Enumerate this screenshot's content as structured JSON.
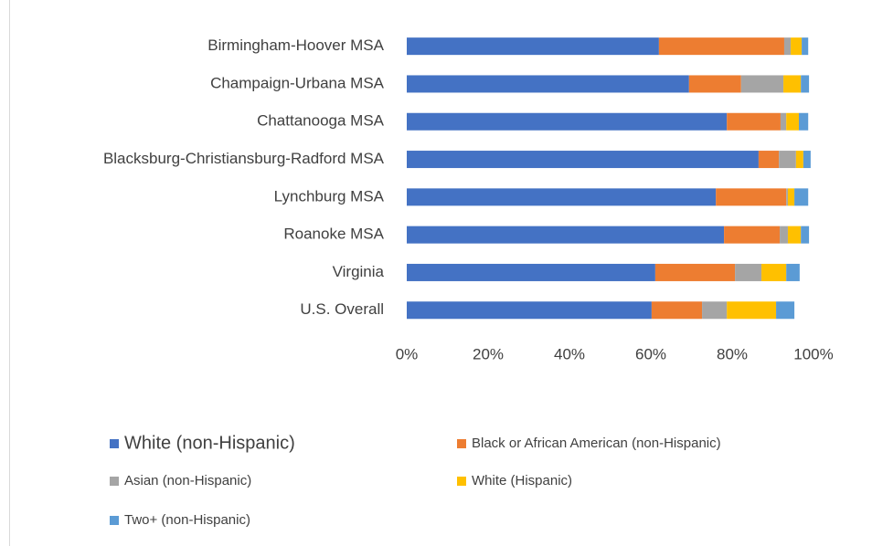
{
  "chart_data": {
    "type": "stacked_bar_horizontal",
    "categories": [
      "Birmingham-Hoover MSA",
      "Champaign-Urbana MSA",
      "Chattanooga MSA",
      "Blacksburg-Christiansburg-Radford MSA",
      "Lynchburg MSA",
      "Roanoke MSA",
      "Virginia",
      "U.S. Overall"
    ],
    "series": [
      {
        "name": "White (non-Hispanic)",
        "color": "#4472c4",
        "values": [
          62.0,
          69.4,
          78.7,
          86.5,
          76.0,
          78.0,
          61.1,
          60.2
        ]
      },
      {
        "name": "Black or African American (non-Hispanic)",
        "color": "#ed7d31",
        "values": [
          30.8,
          12.8,
          13.2,
          5.0,
          17.3,
          13.7,
          19.6,
          12.4
        ]
      },
      {
        "name": "Asian (non-Hispanic)",
        "color": "#a5a5a5",
        "values": [
          1.6,
          10.4,
          1.4,
          4.2,
          0.4,
          2.0,
          6.5,
          6.1
        ]
      },
      {
        "name": "White (Hispanic)",
        "color": "#ffc000",
        "values": [
          2.7,
          4.3,
          3.1,
          1.8,
          1.6,
          3.2,
          6.1,
          12.1
        ]
      },
      {
        "name": "Two+ (non-Hispanic)",
        "color": "#5b9bd5",
        "values": [
          1.6,
          2.0,
          2.3,
          1.8,
          3.4,
          2.0,
          3.3,
          4.5
        ]
      }
    ],
    "xlim": [
      0,
      100
    ],
    "xticks": [
      {
        "value": 0,
        "label": "0%"
      },
      {
        "value": 20,
        "label": "20%"
      },
      {
        "value": 40,
        "label": "40%"
      },
      {
        "value": 60,
        "label": "60%"
      },
      {
        "value": 80,
        "label": "80%"
      },
      {
        "value": 100,
        "label": "100%"
      }
    ],
    "grid": false,
    "legend": "bottom"
  }
}
